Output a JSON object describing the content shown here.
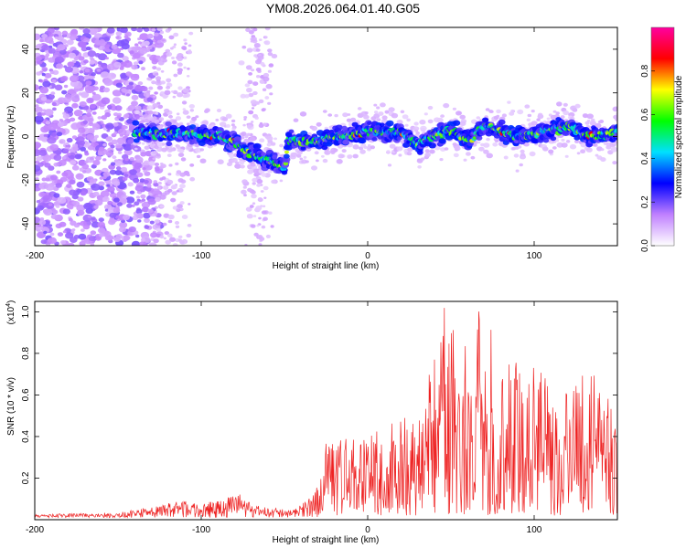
{
  "title": "YM08.2026.064.01.40.G05",
  "chart_data": [
    {
      "type": "heatmap",
      "name": "spectrogram",
      "xlabel": "Height of straight line (km)",
      "ylabel": "Frequency (Hz)",
      "xlim": [
        -200,
        150
      ],
      "ylim": [
        -50,
        50
      ],
      "xticks": [
        -200,
        -100,
        0,
        100
      ],
      "yticks": [
        -40,
        -20,
        0,
        20,
        40
      ],
      "colorbar": {
        "label": "Normalized spectral amplitude",
        "range": [
          0,
          1
        ],
        "ticks": [
          0.0,
          0.2,
          0.4,
          0.6,
          0.8
        ],
        "colormap": [
          "#ffffff",
          "#c080ff",
          "#0000ff",
          "#00e0ff",
          "#00ff00",
          "#ffff00",
          "#ff0000",
          "#ff00a0"
        ]
      },
      "ridge": {
        "description_points": [
          {
            "x": -140,
            "y": 2
          },
          {
            "x": -120,
            "y": 1
          },
          {
            "x": -100,
            "y": 1
          },
          {
            "x": -90,
            "y": 0
          },
          {
            "x": -80,
            "y": -3
          },
          {
            "x": -70,
            "y": -8
          },
          {
            "x": -60,
            "y": -11
          },
          {
            "x": -50,
            "y": -14
          },
          {
            "x": -48,
            "y": -1
          },
          {
            "x": -40,
            "y": -3
          },
          {
            "x": -30,
            "y": -2
          },
          {
            "x": -20,
            "y": 0
          },
          {
            "x": -10,
            "y": 1
          },
          {
            "x": 0,
            "y": 3
          },
          {
            "x": 10,
            "y": 2
          },
          {
            "x": 20,
            "y": 2
          },
          {
            "x": 30,
            "y": -4
          },
          {
            "x": 40,
            "y": 1
          },
          {
            "x": 50,
            "y": 3
          },
          {
            "x": 60,
            "y": -2
          },
          {
            "x": 70,
            "y": 5
          },
          {
            "x": 80,
            "y": 2
          },
          {
            "x": 90,
            "y": 0
          },
          {
            "x": 100,
            "y": 1
          },
          {
            "x": 110,
            "y": 3
          },
          {
            "x": 120,
            "y": 5
          },
          {
            "x": 130,
            "y": 1
          },
          {
            "x": 140,
            "y": 0
          },
          {
            "x": 150,
            "y": 2
          }
        ]
      }
    },
    {
      "type": "line",
      "name": "snr",
      "xlabel": "Height of straight line (km)",
      "ylabel": "SNR (10 * v/v)",
      "yscale_label": "(x10",
      "yscale_exp": "4",
      "yscale_suffix": ")",
      "xlim": [
        -200,
        150
      ],
      "ylim": [
        0,
        1.05
      ],
      "xticks": [
        -200,
        -100,
        0,
        100
      ],
      "yticks": [
        0.2,
        0.4,
        0.6,
        0.8,
        1.0
      ],
      "color": "#ee2222",
      "envelope": [
        {
          "x": -200,
          "y": 0.02
        },
        {
          "x": -150,
          "y": 0.03
        },
        {
          "x": -125,
          "y": 0.06
        },
        {
          "x": -115,
          "y": 0.1
        },
        {
          "x": -100,
          "y": 0.07
        },
        {
          "x": -90,
          "y": 0.09
        },
        {
          "x": -75,
          "y": 0.12
        },
        {
          "x": -65,
          "y": 0.06
        },
        {
          "x": -45,
          "y": 0.04
        },
        {
          "x": -35,
          "y": 0.1
        },
        {
          "x": -28,
          "y": 0.22
        },
        {
          "x": -25,
          "y": 0.38
        },
        {
          "x": -15,
          "y": 0.42
        },
        {
          "x": -5,
          "y": 0.38
        },
        {
          "x": 0,
          "y": 0.45
        },
        {
          "x": 5,
          "y": 0.55
        },
        {
          "x": 20,
          "y": 0.48
        },
        {
          "x": 35,
          "y": 0.62
        },
        {
          "x": 40,
          "y": 0.82
        },
        {
          "x": 45,
          "y": 1.04
        },
        {
          "x": 55,
          "y": 0.85
        },
        {
          "x": 65,
          "y": 1.02
        },
        {
          "x": 75,
          "y": 0.93
        },
        {
          "x": 85,
          "y": 0.85
        },
        {
          "x": 95,
          "y": 0.73
        },
        {
          "x": 105,
          "y": 0.78
        },
        {
          "x": 115,
          "y": 0.68
        },
        {
          "x": 125,
          "y": 0.72
        },
        {
          "x": 135,
          "y": 0.72
        },
        {
          "x": 145,
          "y": 0.62
        },
        {
          "x": 150,
          "y": 0.55
        }
      ]
    }
  ]
}
